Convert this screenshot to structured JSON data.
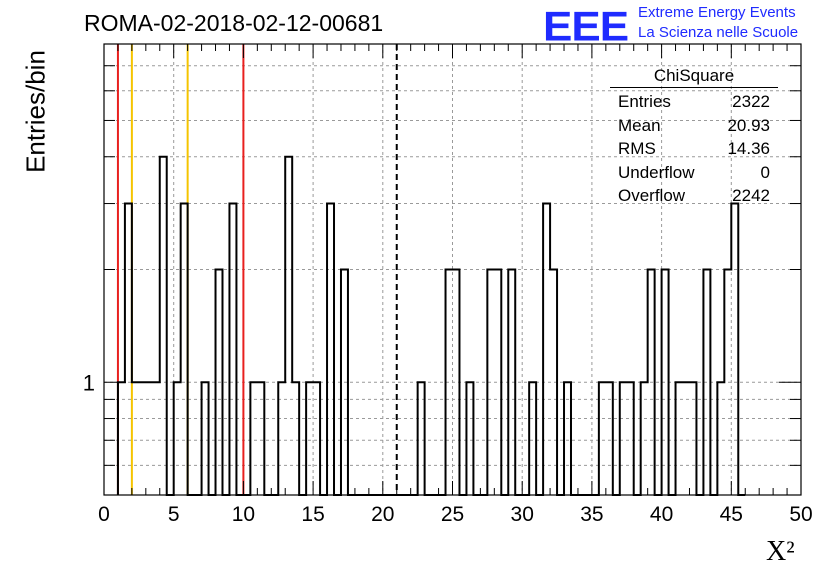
{
  "title": "ROMA-02-2018-02-12-00681",
  "logo": {
    "mark": "EEE",
    "line1": "Extreme Energy Events",
    "line2": "La Scienza nelle Scuole",
    "color": "#1f2bff"
  },
  "stats_box": {
    "title": "ChiSquare",
    "rows": [
      {
        "label": "Entries",
        "value": "2322"
      },
      {
        "label": "Mean",
        "value": "20.93"
      },
      {
        "label": "RMS",
        "value": "14.36"
      },
      {
        "label": "Underflow",
        "value": "0"
      },
      {
        "label": "Overflow",
        "value": "2242"
      }
    ]
  },
  "chart_data": {
    "type": "bar",
    "style": "step-histogram",
    "title": "ROMA-02-2018-02-12-00681",
    "xlabel": "X²",
    "ylabel": "Entries/bin",
    "xlim": [
      0,
      50
    ],
    "ylog": true,
    "ylim": [
      0.5,
      8
    ],
    "bin_width": 0.5,
    "x_ticks": [
      "0",
      "5",
      "10",
      "15",
      "20",
      "25",
      "30",
      "35",
      "40",
      "45",
      "50"
    ],
    "y_tick_labels": [
      "1"
    ],
    "grid": true,
    "bins_x_start": [
      1.0,
      1.5,
      2.0,
      2.5,
      3.0,
      3.5,
      4.0,
      4.5,
      5.0,
      5.5,
      6.0,
      6.5,
      7.0,
      7.5,
      8.0,
      8.5,
      9.0,
      9.5,
      10.0,
      10.5,
      11.0,
      11.5,
      12.0,
      12.5,
      13.0,
      13.5,
      14.0,
      14.5,
      15.0,
      15.5,
      16.0,
      16.5,
      17.0,
      17.5,
      18.0,
      18.5,
      19.0,
      19.5,
      20.0,
      20.5,
      21.0,
      21.5,
      22.0,
      22.5,
      23.0,
      23.5,
      24.0,
      24.5,
      25.0,
      25.5,
      26.0,
      26.5,
      27.0,
      27.5,
      28.0,
      28.5,
      29.0,
      29.5,
      30.0,
      30.5,
      31.0,
      31.5,
      32.0,
      32.5,
      33.0,
      33.5,
      34.0,
      34.5,
      35.0,
      35.5,
      36.0,
      36.5,
      37.0,
      37.5,
      38.0,
      38.5,
      39.0,
      39.5,
      40.0,
      40.5,
      41.0,
      41.5,
      42.0,
      42.5,
      43.0,
      43.5,
      44.0,
      44.5,
      45.0,
      45.5
    ],
    "counts": [
      1,
      3,
      1,
      1,
      1,
      1,
      4,
      0,
      1,
      3,
      0,
      0,
      1,
      0,
      2,
      0,
      3,
      0,
      0,
      1,
      1,
      0,
      0,
      1,
      4,
      1,
      0,
      1,
      1,
      0,
      3,
      0,
      2,
      0,
      0,
      0,
      0,
      0,
      0,
      0,
      0,
      0,
      0,
      1,
      0,
      0,
      0,
      2,
      2,
      0,
      1,
      0,
      0,
      2,
      2,
      0,
      2,
      0,
      0,
      1,
      0,
      3,
      2,
      0,
      1,
      0,
      0,
      0,
      0,
      1,
      1,
      0,
      1,
      1,
      0,
      1,
      2,
      0,
      2,
      0,
      1,
      1,
      1,
      0,
      2,
      0,
      1,
      2,
      3,
      0
    ],
    "vertical_lines": [
      {
        "x": 1.0,
        "color": "#e8201e",
        "style": "solid"
      },
      {
        "x": 2.0,
        "color": "#f5c400",
        "style": "solid"
      },
      {
        "x": 6.0,
        "color": "#f5c400",
        "style": "solid"
      },
      {
        "x": 10.0,
        "color": "#e8201e",
        "style": "solid"
      },
      {
        "x": 21.0,
        "color": "#000000",
        "style": "dashed"
      }
    ]
  }
}
